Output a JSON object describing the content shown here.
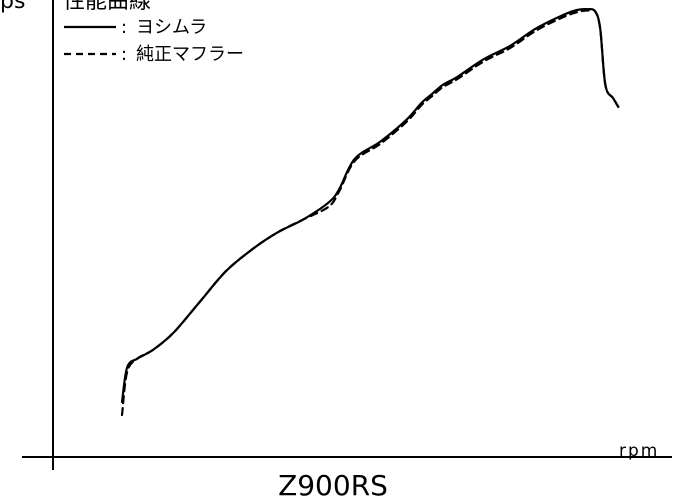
{
  "chart_data": {
    "type": "line",
    "title": "性能曲線",
    "ylabel": "ps",
    "xlabel": "rpm",
    "model": "Z900RS",
    "xlim": [
      0,
      100
    ],
    "ylim": [
      0,
      100
    ],
    "axis_ticks_shown": false,
    "grid": false,
    "legend_placement": "top-left",
    "series": [
      {
        "name": "ヨシムラ",
        "style": "solid",
        "x": [
          0,
          1,
          3,
          6,
          10,
          15,
          20,
          25,
          30,
          35,
          40,
          42,
          45,
          50,
          55,
          58,
          60,
          62,
          65,
          70,
          75,
          80,
          85,
          88,
          90,
          91.5,
          92.5,
          93.5,
          95,
          96
        ],
        "y": [
          9,
          17,
          19,
          21,
          25,
          32,
          39,
          44,
          48,
          51,
          55,
          58,
          65,
          69,
          74,
          78,
          80,
          82,
          84,
          88,
          91,
          95,
          98,
          99.3,
          99.5,
          99,
          95,
          82,
          79,
          77
        ]
      },
      {
        "name": "純正マフラー",
        "style": "dashed",
        "x": [
          0,
          1,
          3,
          6,
          10,
          15,
          20,
          25,
          30,
          35,
          40,
          42,
          45,
          50,
          55,
          58,
          60,
          62,
          65,
          70,
          75,
          80,
          85,
          88,
          90,
          91.5,
          92.5,
          93.5,
          95,
          96
        ],
        "y": [
          6,
          16,
          19,
          21,
          25,
          32,
          39,
          44,
          48,
          51,
          54,
          57.5,
          64.5,
          68.5,
          73.5,
          77.5,
          79.5,
          81.5,
          83.5,
          87.5,
          90.5,
          94.5,
          97.5,
          98.8,
          99.2,
          99,
          95,
          82,
          79,
          77
        ]
      }
    ]
  }
}
